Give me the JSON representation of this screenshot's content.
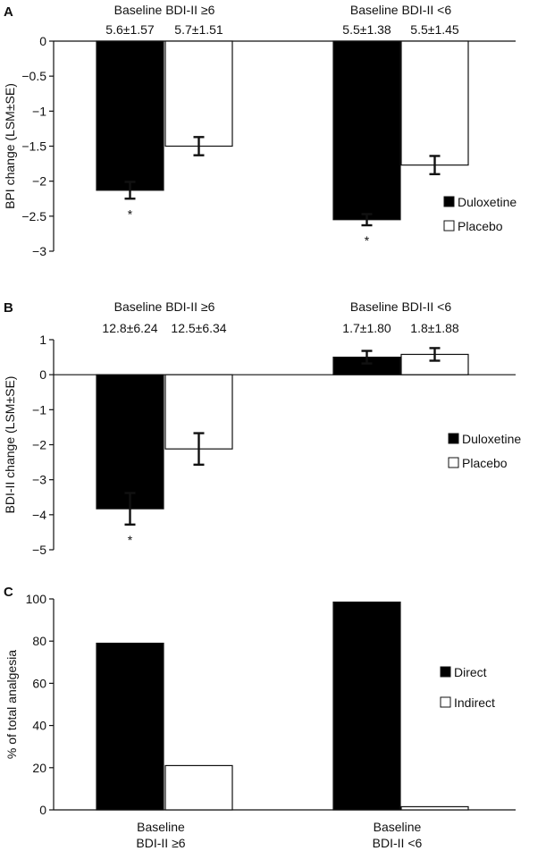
{
  "chart_data": [
    {
      "type": "bar",
      "panel_label": "A",
      "ylabel": "BPI change (LSM±SE)",
      "ylim": [
        -3,
        0
      ],
      "yticks": [
        0,
        -0.5,
        -1,
        -1.5,
        -2,
        -2.5,
        -3
      ],
      "ytick_labels": [
        "0",
        "−0.5",
        "−1",
        "−1.5",
        "−2",
        "−2.5",
        "−3"
      ],
      "groups": [
        {
          "name": "Baseline BDI-II ≥6",
          "baseline_labels": [
            "5.6±1.57",
            "5.7±1.51"
          ]
        },
        {
          "name": "Baseline BDI-II <6",
          "baseline_labels": [
            "5.5±1.38",
            "5.5±1.45"
          ]
        }
      ],
      "series": [
        {
          "name": "Duloxetine",
          "fill": "#000000",
          "values": [
            -2.13,
            -2.55
          ],
          "se": [
            0.12,
            0.08
          ]
        },
        {
          "name": "Placebo",
          "fill": "#ffffff",
          "values": [
            -1.5,
            -1.77
          ],
          "se": [
            0.13,
            0.13
          ]
        }
      ],
      "significance": [
        {
          "group": 0,
          "series": 0,
          "mark": "*"
        },
        {
          "group": 1,
          "series": 0,
          "mark": "*"
        }
      ]
    },
    {
      "type": "bar",
      "panel_label": "B",
      "ylabel": "BDI-II change (LSM±SE)",
      "ylim": [
        -5,
        1
      ],
      "yticks": [
        1,
        0,
        -1,
        -2,
        -3,
        -4,
        -5
      ],
      "ytick_labels": [
        "1",
        "0",
        "−1",
        "−2",
        "−3",
        "−4",
        "−5"
      ],
      "groups": [
        {
          "name": "Baseline BDI-II ≥6",
          "baseline_labels": [
            "12.8±6.24",
            "12.5±6.34"
          ]
        },
        {
          "name": "Baseline BDI-II <6",
          "baseline_labels": [
            "1.7±1.80",
            "1.8±1.88"
          ]
        }
      ],
      "series": [
        {
          "name": "Duloxetine",
          "fill": "#000000",
          "values": [
            -3.83,
            0.5
          ],
          "se": [
            0.45,
            0.18
          ]
        },
        {
          "name": "Placebo",
          "fill": "#ffffff",
          "values": [
            -2.12,
            0.58
          ],
          "se": [
            0.45,
            0.18
          ]
        }
      ],
      "significance": [
        {
          "group": 0,
          "series": 0,
          "mark": "*"
        }
      ]
    },
    {
      "type": "bar",
      "panel_label": "C",
      "ylabel": "% of total analgesia",
      "ylim": [
        0,
        100
      ],
      "yticks": [
        0,
        20,
        40,
        60,
        80,
        100
      ],
      "ytick_labels": [
        "0",
        "20",
        "40",
        "60",
        "80",
        "100"
      ],
      "categories": [
        [
          "Baseline",
          "BDI-II ≥6"
        ],
        [
          "Baseline",
          "BDI-II <6"
        ]
      ],
      "series": [
        {
          "name": "Direct",
          "fill": "#000000",
          "values": [
            79,
            98.5
          ]
        },
        {
          "name": "Indirect",
          "fill": "#ffffff",
          "values": [
            21,
            1.5
          ]
        }
      ]
    }
  ]
}
